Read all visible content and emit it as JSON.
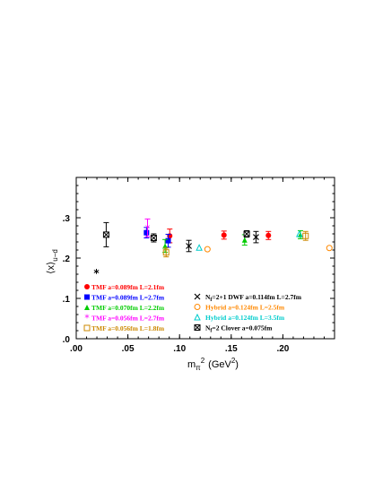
{
  "chart_data": {
    "type": "scatter",
    "xlabel": "m_π² (GeV²)",
    "ylabel": "⟨x⟩_{u−d}",
    "xlabel_parts": {
      "m": "m",
      "pi": "π",
      "sq": "2",
      "unit": "(GeV",
      "unit_sq": "2",
      "close": ")"
    },
    "ylabel_parts": {
      "x": "⟨x⟩",
      "sub": "u−d"
    },
    "xlim": [
      0.0,
      0.25
    ],
    "ylim": [
      0.0,
      0.4
    ],
    "xticks": [
      0.0,
      0.05,
      0.1,
      0.15,
      0.2
    ],
    "xtick_labels": [
      ".00",
      ".05",
      ".10",
      ".15",
      ".20"
    ],
    "yticks": [
      0.0,
      0.1,
      0.2,
      0.3
    ],
    "ytick_labels": [
      ".0",
      ".1",
      ".2",
      ".3"
    ],
    "grid": false,
    "legend_placement": "bottom-left",
    "physical_point": {
      "x": 0.0195,
      "y": 0.164
    },
    "series": [
      {
        "name": "TMF  a=0.089fm  L=2.1fm",
        "color": "#ff0000",
        "marker": "circle-filled",
        "points": [
          {
            "x": 0.0905,
            "y": 0.255,
            "err": 0.017
          },
          {
            "x": 0.143,
            "y": 0.257,
            "err": 0.01
          },
          {
            "x": 0.186,
            "y": 0.256,
            "err": 0.01
          }
        ]
      },
      {
        "name": "TMF  a=0.089fm  L=2.7fm",
        "color": "#0000ff",
        "marker": "square-filled",
        "points": [
          {
            "x": 0.068,
            "y": 0.263,
            "err": 0.013
          },
          {
            "x": 0.089,
            "y": 0.243,
            "err": 0.016
          }
        ]
      },
      {
        "name": "TMF  a=0.070fm  L=2.2fm",
        "color": "#00cc00",
        "marker": "triangle-filled",
        "points": [
          {
            "x": 0.086,
            "y": 0.23,
            "err": 0.016
          },
          {
            "x": 0.163,
            "y": 0.245,
            "err": 0.013
          },
          {
            "x": 0.217,
            "y": 0.258,
            "err": 0.01
          }
        ]
      },
      {
        "name": "TMF  a=0.056fm  L=2.7fm",
        "color": "#ff00ff",
        "marker": "star",
        "points": [
          {
            "x": 0.069,
            "y": 0.275,
            "err": 0.022
          }
        ]
      },
      {
        "name": "TMF  a=0.056fm  L=1.8fm",
        "color": "#cc8800",
        "marker": "square-open",
        "points": [
          {
            "x": 0.087,
            "y": 0.214,
            "err": 0.011
          },
          {
            "x": 0.222,
            "y": 0.255,
            "err": 0.011
          }
        ]
      },
      {
        "name": "N_f=2+1  DWF  a=0.114fm  L=2.7fm",
        "color": "#000000",
        "marker": "cross",
        "points": [
          {
            "x": 0.109,
            "y": 0.23,
            "err": 0.014
          },
          {
            "x": 0.174,
            "y": 0.252,
            "err": 0.014
          }
        ]
      },
      {
        "name": "Hybrid  a=0.124fm  L=2.5fm",
        "color": "#ff8800",
        "marker": "circle-open",
        "points": [
          {
            "x": 0.127,
            "y": 0.222,
            "err": 0.0
          },
          {
            "x": 0.245,
            "y": 0.225,
            "err": 0.0
          }
        ]
      },
      {
        "name": "Hybrid  a=0.124fm  L=3.5fm",
        "color": "#00cccc",
        "marker": "triangle-open",
        "points": [
          {
            "x": 0.119,
            "y": 0.226,
            "err": 0.0
          },
          {
            "x": 0.216,
            "y": 0.26,
            "err": 0.0
          }
        ]
      },
      {
        "name": "N_f=2  Clover  a=0.075fm",
        "color": "#000000",
        "marker": "square-x",
        "points": [
          {
            "x": 0.029,
            "y": 0.258,
            "err": 0.03
          },
          {
            "x": 0.075,
            "y": 0.25,
            "err": 0.01
          },
          {
            "x": 0.165,
            "y": 0.26,
            "err": 0.008
          }
        ]
      }
    ],
    "legend_left": [
      {
        "marker": "circle-filled",
        "color": "#ff0000",
        "text": "TMF  a=0.089fm  L=2.1fm"
      },
      {
        "marker": "square-filled",
        "color": "#0000ff",
        "text": "TMF  a=0.089fm  L=2.7fm"
      },
      {
        "marker": "triangle-filled",
        "color": "#00cc00",
        "text": "TMF  a=0.070fm  L=2.2fm"
      },
      {
        "marker": "star",
        "color": "#ff00ff",
        "text": "TMF  a=0.056fm  L=2.7fm"
      },
      {
        "marker": "square-open",
        "color": "#cc8800",
        "text": "TMF  a=0.056fm  L=1.8fm"
      }
    ],
    "legend_right": [
      {
        "marker": "cross",
        "color": "#000000",
        "text": "N_f=2+1  DWF  a=0.114fm  L=2.7fm"
      },
      {
        "marker": "circle-open",
        "color": "#ff8800",
        "text": "Hybrid  a=0.124fm  L=2.5fm"
      },
      {
        "marker": "triangle-open",
        "color": "#00cccc",
        "text": "Hybrid  a=0.124fm  L=3.5fm"
      },
      {
        "marker": "square-x",
        "color": "#000000",
        "text": "N_f=2  Clover  a=0.075fm"
      }
    ]
  }
}
